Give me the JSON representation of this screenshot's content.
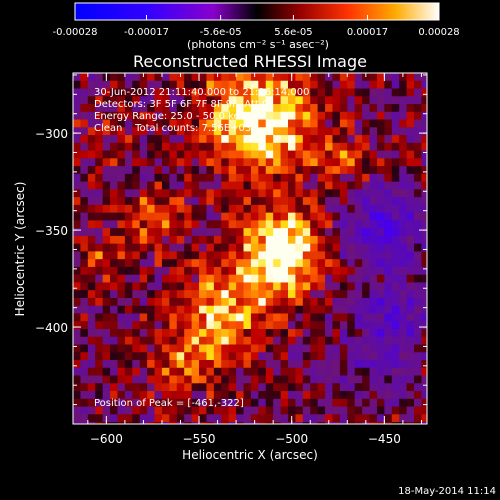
{
  "colorbar": {
    "ticks": [
      "-0.00028",
      "-0.00017",
      "-5.6e-05",
      "5.6e-05",
      "0.00017",
      "0.00028"
    ],
    "units": "(photons cm⁻² s⁻¹ asec⁻²)",
    "range": [
      -0.00028,
      0.00028
    ]
  },
  "chart_data": {
    "type": "heatmap",
    "title": "Reconstructed RHESSI Image",
    "xlabel": "Heliocentric X (arcsec)",
    "ylabel": "Heliocentric Y (arcsec)",
    "xlim": [
      -618,
      -427
    ],
    "ylim": [
      -450,
      -269
    ],
    "xticks": [
      -600,
      -550,
      -500,
      -450
    ],
    "yticks": [
      -300,
      -350,
      -400
    ],
    "xtick_labels": [
      "−600",
      "−550",
      "−500",
      "−450"
    ],
    "ytick_labels": [
      "−300",
      "−350",
      "−400"
    ],
    "annotations": [
      "30-Jun-2012 21:11:40.000 to 21:16:14.000",
      "Detectors: 3F 5F 6F 7F 8F 9F, Att 0",
      "Energy Range: 25.0 - 50.0 keV",
      "Clean    Total counts: 7.56E+03"
    ],
    "peak_label": "Position of Peak = [-461,-322]",
    "peak": [
      -461,
      -322
    ],
    "sources": [
      {
        "x": -517,
        "y": -293,
        "amp": 0.0003,
        "sigma": 21
      },
      {
        "x": -505,
        "y": -362,
        "amp": 0.00034,
        "sigma": 15
      },
      {
        "x": -538,
        "y": -393,
        "amp": 0.00022,
        "sigma": 17
      },
      {
        "x": -575,
        "y": -345,
        "amp": 0.00014,
        "sigma": 12
      },
      {
        "x": -600,
        "y": -365,
        "amp": 0.00011,
        "sigma": 10
      },
      {
        "x": -560,
        "y": -420,
        "amp": 0.00013,
        "sigma": 12
      },
      {
        "x": -470,
        "y": -315,
        "amp": 0.00012,
        "sigma": 9
      },
      {
        "x": -600,
        "y": -300,
        "amp": 8e-05,
        "sigma": 10
      },
      {
        "x": -450,
        "y": -350,
        "amp": -0.00022,
        "sigma": 14
      },
      {
        "x": -445,
        "y": -395,
        "amp": -0.00018,
        "sigma": 12
      },
      {
        "x": -455,
        "y": -420,
        "amp": -0.00012,
        "sigma": 10
      }
    ]
  },
  "footer": {
    "date": "18-May-2014 11:14"
  }
}
